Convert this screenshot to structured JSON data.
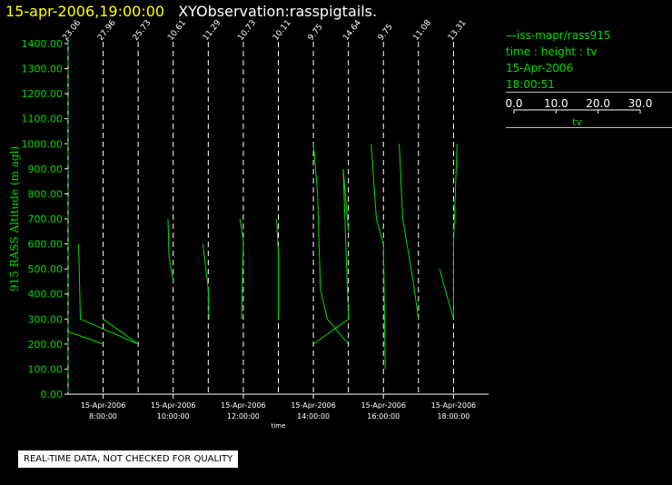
{
  "header": {
    "timestamp": "15-apr-2006,19:00:00",
    "title": "XYObservation:rasspigtails."
  },
  "legend": {
    "series_line": "—iss-mapr/rass915",
    "fields": "time : height : tv",
    "date": "15-Apr-2006",
    "time": "18:00:51",
    "scale_ticks": [
      "0.0",
      "10.0",
      "20.0",
      "30.0"
    ],
    "scale_label": "tv"
  },
  "footer": {
    "qc_notice": "REAL-TIME DATA, NOT CHECKED FOR QUALITY"
  },
  "colors": {
    "background": "#000000",
    "axes": "#ffffff",
    "data": "#00dd00",
    "title_time": "#ffff00"
  },
  "chart_data": {
    "type": "line",
    "ylabel": "915 RASS Altitude (m agl)",
    "xlabel": "time",
    "ylim": [
      0,
      1400
    ],
    "yticks": [
      "0.00",
      "100.00",
      "200.00",
      "300.00",
      "400.00",
      "500.00",
      "600.00",
      "700.00",
      "800.00",
      "900.00",
      "1000.00",
      "1100.00",
      "1200.00",
      "1300.00",
      "1400.00"
    ],
    "xlim": [
      "15-Apr-2006 07:00",
      "15-Apr-2006 19:00"
    ],
    "xticks": [
      {
        "time": "08:00",
        "date_label": "15-Apr-2006",
        "time_label": "8:00:00"
      },
      {
        "time": "10:00",
        "date_label": "15-Apr-2006",
        "time_label": "10:00:00"
      },
      {
        "time": "12:00",
        "date_label": "15-Apr-2006",
        "time_label": "12:00:00"
      },
      {
        "time": "14:00",
        "date_label": "15-Apr-2006",
        "time_label": "14:00:00"
      },
      {
        "time": "16:00",
        "date_label": "15-Apr-2006",
        "time_label": "16:00:00"
      },
      {
        "time": "18:00",
        "date_label": "15-Apr-2006",
        "time_label": "18:00:00"
      }
    ],
    "profiles": [
      {
        "time": "07:00",
        "label": "23.06",
        "points": [
          [
            7.3,
            600
          ],
          [
            7.35,
            300
          ],
          [
            9.0,
            200
          ]
        ]
      },
      {
        "time": "08:00",
        "label": "27.96",
        "points": [
          [
            7.0,
            250
          ],
          [
            8.0,
            200
          ]
        ]
      },
      {
        "time": "09:00",
        "label": "25.73",
        "points": [
          [
            8.0,
            300
          ],
          [
            9.0,
            200
          ]
        ]
      },
      {
        "time": "10:00",
        "label": "10.61",
        "points": [
          [
            9.85,
            700
          ],
          [
            9.88,
            550
          ],
          [
            10.0,
            450
          ]
        ]
      },
      {
        "time": "11:00",
        "label": "11.29",
        "points": [
          [
            10.85,
            600
          ],
          [
            11.0,
            420
          ],
          [
            11.02,
            300
          ]
        ]
      },
      {
        "time": "12:00",
        "label": "10.73",
        "points": [
          [
            11.9,
            700
          ],
          [
            12.0,
            620
          ],
          [
            11.95,
            300
          ]
        ]
      },
      {
        "time": "13:00",
        "label": "10.11",
        "points": [
          [
            12.95,
            700
          ],
          [
            13.0,
            560
          ],
          [
            13.0,
            300
          ]
        ]
      },
      {
        "time": "14:00",
        "label": "9.75",
        "points": [
          [
            14.0,
            1000
          ],
          [
            14.12,
            800
          ],
          [
            14.2,
            420
          ],
          [
            14.4,
            300
          ],
          [
            15.0,
            200
          ]
        ]
      },
      {
        "time": "15:00",
        "label": "14.64",
        "points": [
          [
            14.0,
            200
          ],
          [
            15.0,
            300
          ],
          [
            14.85,
            900
          ],
          [
            15.0,
            650
          ]
        ]
      },
      {
        "time": "16:00",
        "label": "9.75",
        "points": [
          [
            15.65,
            1000
          ],
          [
            15.8,
            700
          ],
          [
            16.0,
            600
          ],
          [
            16.05,
            100
          ]
        ]
      },
      {
        "time": "17:00",
        "label": "11.08",
        "points": [
          [
            16.45,
            1000
          ],
          [
            16.55,
            700
          ],
          [
            16.85,
            450
          ],
          [
            17.0,
            300
          ]
        ]
      },
      {
        "time": "18:00",
        "label": "13.31",
        "points": [
          [
            17.6,
            500
          ],
          [
            17.8,
            400
          ],
          [
            18.0,
            300
          ],
          [
            18.0,
            600
          ],
          [
            18.1,
            1000
          ]
        ]
      }
    ]
  }
}
